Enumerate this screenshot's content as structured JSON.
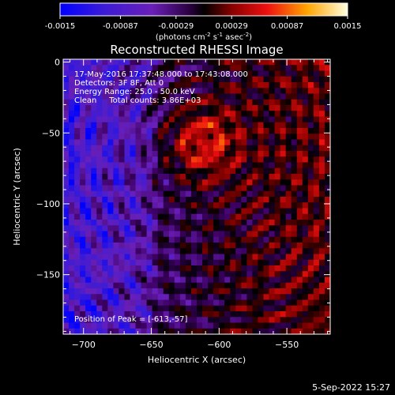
{
  "colorbar": {
    "ticks": [
      "-0.0015",
      "-0.00087",
      "-0.00029",
      "0.00029",
      "0.00087",
      "0.0015"
    ],
    "unit_main": "(photons cm",
    "unit_exp1": "-2",
    "unit_mid": " s",
    "unit_exp2": "-1",
    "unit_end": " asec",
    "unit_exp3": "-2",
    "unit_close": ")"
  },
  "chart_data": {
    "type": "heatmap",
    "title": "Reconstructed RHESSI Image",
    "xlabel": "Heliocentric X (arcsec)",
    "ylabel": "Heliocentric Y (arcsec)",
    "xlim": [
      -715,
      -518
    ],
    "ylim": [
      -192,
      2
    ],
    "x_ticks": [
      -700,
      -650,
      -600,
      -550
    ],
    "x_tick_labels": [
      "−700",
      "−650",
      "−600",
      "−550"
    ],
    "y_ticks": [
      0,
      -50,
      -100,
      -150
    ],
    "y_tick_labels": [
      "0",
      "−50",
      "−100",
      "−150"
    ],
    "value_range": [
      -0.0015,
      0.0015
    ],
    "colormap": [
      "#0000ff",
      "#3b1bd6",
      "#6a1fb8",
      "#3b0060",
      "#000000",
      "#8b0000",
      "#ee1010",
      "#ffa500",
      "#ffffe0"
    ],
    "peak": [
      -613,
      -57
    ],
    "annotations": [
      "17-May-2016 17:37:48.000 to 17:43:08.000",
      "Detectors: 3F 8F, Att 0",
      "Energy Range: 25.0 - 50.0 keV",
      "Clean     Total counts: 3.86E+03"
    ],
    "peak_label": "Position of Peak = [-613,-57]"
  },
  "footer_date": "5-Sep-2022 15:27"
}
